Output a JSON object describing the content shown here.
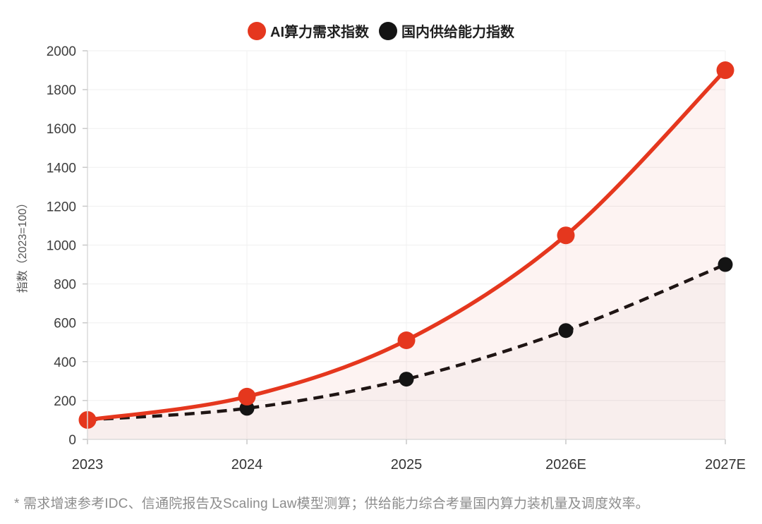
{
  "chart_data": {
    "type": "line",
    "categories": [
      "2023",
      "2024",
      "2025",
      "2026E",
      "2027E"
    ],
    "series": [
      {
        "name": "AI算力需求指数",
        "values": [
          100,
          220,
          510,
          1050,
          1900
        ],
        "color": "#e5371e",
        "line_style": "solid",
        "area_fill": "rgba(229,55,30,0.06)",
        "line_width": 5.5,
        "point_radius": 12.5
      },
      {
        "name": "国内供给能力指数",
        "values": [
          100,
          160,
          310,
          560,
          900
        ],
        "color": "#141414",
        "line_style": "dashed",
        "area_fill": "rgba(20,20,20,0.02)",
        "line_width": 4.5,
        "point_radius": 10.5
      }
    ],
    "title": "",
    "xlabel": "",
    "ylabel": "指数（2023=100）",
    "ylim": [
      0,
      2000
    ],
    "ytick_step": 200,
    "grid": true,
    "legend_position": "top",
    "colors": {
      "grid_h": "#efefef",
      "grid_v": "#f2f2f2",
      "axis": "#dcdcdc",
      "tick": "#c9c9c9",
      "tick_label": "#3d3d3d",
      "x_label": "#333333",
      "axis_title": "#555555"
    }
  },
  "footnote": {
    "text": "* 需求增速参考IDC、信通院报告及Scaling Law模型测算；供给能力综合考量国内算力装机量及调度效率。"
  }
}
